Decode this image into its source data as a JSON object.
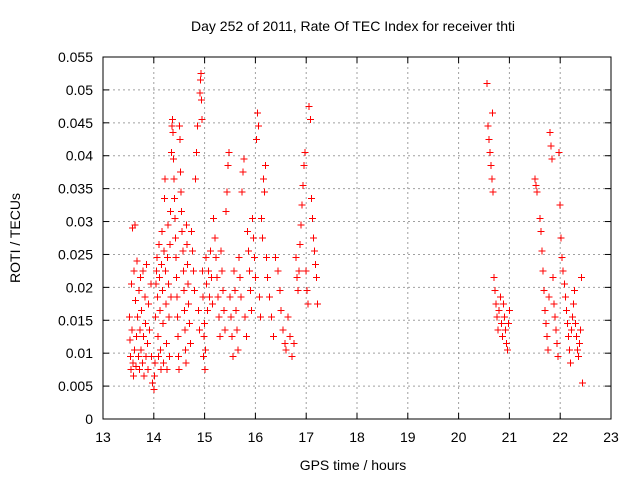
{
  "chart_data": {
    "type": "scatter",
    "title": "Day 252 of 2011, Rate Of TEC Index for receiver thti",
    "xlabel": "GPS time / hours",
    "ylabel": "ROTI / TECUs",
    "xlim": [
      13,
      23
    ],
    "ylim": [
      0,
      0.055
    ],
    "xticks": [
      13,
      14,
      15,
      16,
      17,
      18,
      19,
      20,
      21,
      22,
      23
    ],
    "xtick_labels": [
      "13",
      "14",
      "15",
      "16",
      "17",
      "18",
      "19",
      "20",
      "21",
      "22",
      "23"
    ],
    "yticks": [
      0,
      0.005,
      0.01,
      0.015,
      0.02,
      0.025,
      0.03,
      0.035,
      0.04,
      0.045,
      0.05,
      0.055
    ],
    "ytick_labels": [
      "0",
      "0.005",
      "0.01",
      "0.015",
      "0.02",
      "0.025",
      "0.03",
      "0.035",
      "0.04",
      "0.045",
      "0.05",
      "0.055"
    ],
    "grid": true,
    "marker": "+",
    "marker_color": "#ff0000",
    "series": [
      {
        "points": [
          [
            13.52,
            0.0155
          ],
          [
            13.53,
            0.012
          ],
          [
            13.54,
            0.0095
          ],
          [
            13.55,
            0.0075
          ],
          [
            13.56,
            0.0205
          ],
          [
            13.57,
            0.0135
          ],
          [
            13.58,
            0.029
          ],
          [
            13.59,
            0.0085
          ],
          [
            13.6,
            0.0065
          ],
          [
            13.61,
            0.0225
          ],
          [
            13.62,
            0.0105
          ],
          [
            13.63,
            0.0295
          ],
          [
            13.64,
            0.018
          ],
          [
            13.65,
            0.008
          ],
          [
            13.66,
            0.0125
          ],
          [
            13.67,
            0.024
          ],
          [
            13.68,
            0.0155
          ],
          [
            13.7,
            0.0095
          ],
          [
            13.71,
            0.0195
          ],
          [
            13.72,
            0.0075
          ],
          [
            13.73,
            0.0135
          ],
          [
            13.74,
            0.0215
          ],
          [
            13.75,
            0.0105
          ],
          [
            13.76,
            0.0165
          ],
          [
            13.78,
            0.0085
          ],
          [
            13.79,
            0.0225
          ],
          [
            13.8,
            0.0125
          ],
          [
            13.81,
            0.0065
          ],
          [
            13.83,
            0.0185
          ],
          [
            13.84,
            0.0145
          ],
          [
            13.85,
            0.0095
          ],
          [
            13.86,
            0.0235
          ],
          [
            13.88,
            0.0115
          ],
          [
            13.89,
            0.0075
          ],
          [
            13.9,
            0.0175
          ],
          [
            13.92,
            0.0135
          ],
          [
            13.94,
            0.0205
          ],
          [
            13.95,
            0.0095
          ],
          [
            13.97,
            0.0055
          ],
          [
            14.0,
            0.0045
          ],
          [
            14.01,
            0.0065
          ],
          [
            14.02,
            0.0085
          ],
          [
            14.03,
            0.0155
          ],
          [
            14.04,
            0.0205
          ],
          [
            14.05,
            0.0225
          ],
          [
            14.06,
            0.0245
          ],
          [
            14.07,
            0.0185
          ],
          [
            14.08,
            0.0125
          ],
          [
            14.09,
            0.0095
          ],
          [
            14.1,
            0.0265
          ],
          [
            14.11,
            0.0215
          ],
          [
            14.12,
            0.0165
          ],
          [
            14.13,
            0.0105
          ],
          [
            14.14,
            0.0075
          ],
          [
            14.15,
            0.0235
          ],
          [
            14.16,
            0.0285
          ],
          [
            14.17,
            0.0195
          ],
          [
            14.18,
            0.0145
          ],
          [
            14.19,
            0.0085
          ],
          [
            14.2,
            0.0255
          ],
          [
            14.21,
            0.0335
          ],
          [
            14.22,
            0.0365
          ],
          [
            14.23,
            0.0225
          ],
          [
            14.24,
            0.0175
          ],
          [
            14.25,
            0.0115
          ],
          [
            14.26,
            0.0075
          ],
          [
            14.27,
            0.0245
          ],
          [
            14.28,
            0.0295
          ],
          [
            14.29,
            0.0205
          ],
          [
            14.3,
            0.0155
          ],
          [
            14.31,
            0.0095
          ],
          [
            14.32,
            0.0265
          ],
          [
            14.33,
            0.0315
          ],
          [
            14.34,
            0.0185
          ],
          [
            14.35,
            0.0405
          ],
          [
            14.36,
            0.0445
          ],
          [
            14.37,
            0.0455
          ],
          [
            14.38,
            0.0435
          ],
          [
            14.39,
            0.0395
          ],
          [
            14.4,
            0.0365
          ],
          [
            14.41,
            0.0335
          ],
          [
            14.42,
            0.0305
          ],
          [
            14.43,
            0.0275
          ],
          [
            14.44,
            0.0245
          ],
          [
            14.45,
            0.0215
          ],
          [
            14.46,
            0.0185
          ],
          [
            14.47,
            0.0155
          ],
          [
            14.48,
            0.0125
          ],
          [
            14.49,
            0.0095
          ],
          [
            14.5,
            0.0075
          ],
          [
            14.51,
            0.0445
          ],
          [
            14.52,
            0.0425
          ],
          [
            14.53,
            0.0375
          ],
          [
            14.54,
            0.0345
          ],
          [
            14.55,
            0.0315
          ],
          [
            14.56,
            0.0285
          ],
          [
            14.57,
            0.0255
          ],
          [
            14.58,
            0.0225
          ],
          [
            14.59,
            0.0195
          ],
          [
            14.6,
            0.0165
          ],
          [
            14.61,
            0.0135
          ],
          [
            14.62,
            0.0105
          ],
          [
            14.63,
            0.0085
          ],
          [
            14.64,
            0.0295
          ],
          [
            14.65,
            0.0265
          ],
          [
            14.66,
            0.0235
          ],
          [
            14.67,
            0.0205
          ],
          [
            14.68,
            0.0175
          ],
          [
            14.7,
            0.0145
          ],
          [
            14.72,
            0.0115
          ],
          [
            14.74,
            0.0285
          ],
          [
            14.76,
            0.0255
          ],
          [
            14.78,
            0.0225
          ],
          [
            14.8,
            0.0195
          ],
          [
            14.82,
            0.0365
          ],
          [
            14.84,
            0.0405
          ],
          [
            14.86,
            0.0445
          ],
          [
            14.88,
            0.0165
          ],
          [
            14.9,
            0.0135
          ],
          [
            14.91,
            0.0495
          ],
          [
            14.92,
            0.0515
          ],
          [
            14.93,
            0.0525
          ],
          [
            14.94,
            0.0485
          ],
          [
            14.95,
            0.0455
          ],
          [
            14.96,
            0.0225
          ],
          [
            14.97,
            0.0185
          ],
          [
            14.98,
            0.0095
          ],
          [
            14.99,
            0.0125
          ],
          [
            15.0,
            0.0145
          ],
          [
            15.01,
            0.0075
          ],
          [
            15.02,
            0.0105
          ],
          [
            15.03,
            0.0245
          ],
          [
            15.04,
            0.0205
          ],
          [
            15.06,
            0.0165
          ],
          [
            15.08,
            0.0225
          ],
          [
            15.1,
            0.0185
          ],
          [
            15.12,
            0.0255
          ],
          [
            15.14,
            0.0215
          ],
          [
            15.16,
            0.0175
          ],
          [
            15.18,
            0.0305
          ],
          [
            15.2,
            0.0275
          ],
          [
            15.22,
            0.0245
          ],
          [
            15.24,
            0.0215
          ],
          [
            15.26,
            0.0185
          ],
          [
            15.28,
            0.0155
          ],
          [
            15.3,
            0.0125
          ],
          [
            15.32,
            0.0255
          ],
          [
            15.34,
            0.0225
          ],
          [
            15.36,
            0.0195
          ],
          [
            15.38,
            0.0165
          ],
          [
            15.4,
            0.0135
          ],
          [
            15.42,
            0.0315
          ],
          [
            15.44,
            0.0345
          ],
          [
            15.46,
            0.0385
          ],
          [
            15.48,
            0.0405
          ],
          [
            15.5,
            0.0185
          ],
          [
            15.52,
            0.0155
          ],
          [
            15.54,
            0.0125
          ],
          [
            15.56,
            0.0095
          ],
          [
            15.58,
            0.0225
          ],
          [
            15.6,
            0.0195
          ],
          [
            15.62,
            0.0165
          ],
          [
            15.64,
            0.0135
          ],
          [
            15.66,
            0.0105
          ],
          [
            15.68,
            0.0245
          ],
          [
            15.7,
            0.0215
          ],
          [
            15.72,
            0.0185
          ],
          [
            15.74,
            0.0345
          ],
          [
            15.76,
            0.0375
          ],
          [
            15.78,
            0.0395
          ],
          [
            15.8,
            0.0155
          ],
          [
            15.82,
            0.0125
          ],
          [
            15.84,
            0.0285
          ],
          [
            15.86,
            0.0255
          ],
          [
            15.88,
            0.0225
          ],
          [
            15.9,
            0.0195
          ],
          [
            15.92,
            0.0165
          ],
          [
            15.94,
            0.0305
          ],
          [
            15.96,
            0.0275
          ],
          [
            15.98,
            0.0245
          ],
          [
            16.0,
            0.0215
          ],
          [
            16.02,
            0.0425
          ],
          [
            16.04,
            0.0465
          ],
          [
            16.06,
            0.0445
          ],
          [
            16.08,
            0.0185
          ],
          [
            16.1,
            0.0155
          ],
          [
            16.12,
            0.0305
          ],
          [
            16.14,
            0.0275
          ],
          [
            16.16,
            0.0365
          ],
          [
            16.18,
            0.0345
          ],
          [
            16.2,
            0.0385
          ],
          [
            16.22,
            0.0245
          ],
          [
            16.24,
            0.0215
          ],
          [
            16.28,
            0.0185
          ],
          [
            16.32,
            0.0155
          ],
          [
            16.36,
            0.0125
          ],
          [
            16.4,
            0.0245
          ],
          [
            16.44,
            0.0225
          ],
          [
            16.48,
            0.0195
          ],
          [
            16.5,
            0.0165
          ],
          [
            16.54,
            0.0135
          ],
          [
            16.58,
            0.0115
          ],
          [
            16.6,
            0.0105
          ],
          [
            16.64,
            0.0155
          ],
          [
            16.68,
            0.0125
          ],
          [
            16.72,
            0.0095
          ],
          [
            16.76,
            0.0115
          ],
          [
            16.8,
            0.0245
          ],
          [
            16.82,
            0.0215
          ],
          [
            16.84,
            0.0195
          ],
          [
            16.86,
            0.0225
          ],
          [
            16.88,
            0.0265
          ],
          [
            16.9,
            0.0295
          ],
          [
            16.92,
            0.0325
          ],
          [
            16.94,
            0.0355
          ],
          [
            16.96,
            0.0385
          ],
          [
            16.98,
            0.0405
          ],
          [
            17.0,
            0.0225
          ],
          [
            17.02,
            0.0195
          ],
          [
            17.04,
            0.0175
          ],
          [
            17.06,
            0.0475
          ],
          [
            17.08,
            0.0455
          ],
          [
            17.1,
            0.0335
          ],
          [
            17.12,
            0.0305
          ],
          [
            17.14,
            0.0275
          ],
          [
            17.16,
            0.0255
          ],
          [
            17.18,
            0.0235
          ],
          [
            17.2,
            0.0215
          ],
          [
            17.22,
            0.0175
          ]
        ]
      },
      {
        "points": [
          [
            20.56,
            0.051
          ],
          [
            20.58,
            0.0445
          ],
          [
            20.6,
            0.0425
          ],
          [
            20.62,
            0.0405
          ],
          [
            20.64,
            0.0385
          ],
          [
            20.66,
            0.0365
          ],
          [
            20.67,
            0.0465
          ],
          [
            20.68,
            0.0345
          ],
          [
            20.7,
            0.0215
          ],
          [
            20.72,
            0.0195
          ],
          [
            20.74,
            0.0175
          ],
          [
            20.76,
            0.0155
          ],
          [
            20.78,
            0.0135
          ],
          [
            20.8,
            0.0165
          ],
          [
            20.82,
            0.0185
          ],
          [
            20.84,
            0.0145
          ],
          [
            20.86,
            0.0125
          ],
          [
            20.88,
            0.0175
          ],
          [
            20.9,
            0.0155
          ],
          [
            20.92,
            0.0135
          ],
          [
            20.94,
            0.0115
          ],
          [
            20.96,
            0.0105
          ],
          [
            20.98,
            0.0145
          ],
          [
            21.0,
            0.0165
          ],
          [
            21.5,
            0.0365
          ],
          [
            21.52,
            0.0355
          ],
          [
            21.54,
            0.0345
          ],
          [
            21.6,
            0.0305
          ],
          [
            21.62,
            0.0285
          ],
          [
            21.64,
            0.0255
          ],
          [
            21.66,
            0.0225
          ],
          [
            21.68,
            0.0195
          ],
          [
            21.7,
            0.0165
          ],
          [
            21.72,
            0.0145
          ],
          [
            21.74,
            0.0125
          ],
          [
            21.76,
            0.0105
          ],
          [
            21.78,
            0.0185
          ],
          [
            21.8,
            0.0435
          ],
          [
            21.82,
            0.0415
          ],
          [
            21.84,
            0.0395
          ],
          [
            21.86,
            0.0215
          ],
          [
            21.88,
            0.0175
          ],
          [
            21.9,
            0.0155
          ],
          [
            21.92,
            0.0135
          ],
          [
            21.94,
            0.0115
          ],
          [
            21.96,
            0.0095
          ],
          [
            21.98,
            0.0405
          ],
          [
            22.0,
            0.0325
          ],
          [
            22.02,
            0.0275
          ],
          [
            22.04,
            0.0245
          ],
          [
            22.06,
            0.0225
          ],
          [
            22.08,
            0.0205
          ],
          [
            22.1,
            0.0185
          ],
          [
            22.12,
            0.0165
          ],
          [
            22.14,
            0.0145
          ],
          [
            22.16,
            0.0125
          ],
          [
            22.18,
            0.0105
          ],
          [
            22.2,
            0.0085
          ],
          [
            22.22,
            0.0135
          ],
          [
            22.24,
            0.0155
          ],
          [
            22.26,
            0.0175
          ],
          [
            22.28,
            0.0195
          ],
          [
            22.3,
            0.0145
          ],
          [
            22.32,
            0.0125
          ],
          [
            22.34,
            0.0105
          ],
          [
            22.36,
            0.0095
          ],
          [
            22.38,
            0.0115
          ],
          [
            22.4,
            0.0135
          ],
          [
            22.42,
            0.0215
          ],
          [
            22.44,
            0.0055
          ]
        ]
      }
    ]
  }
}
